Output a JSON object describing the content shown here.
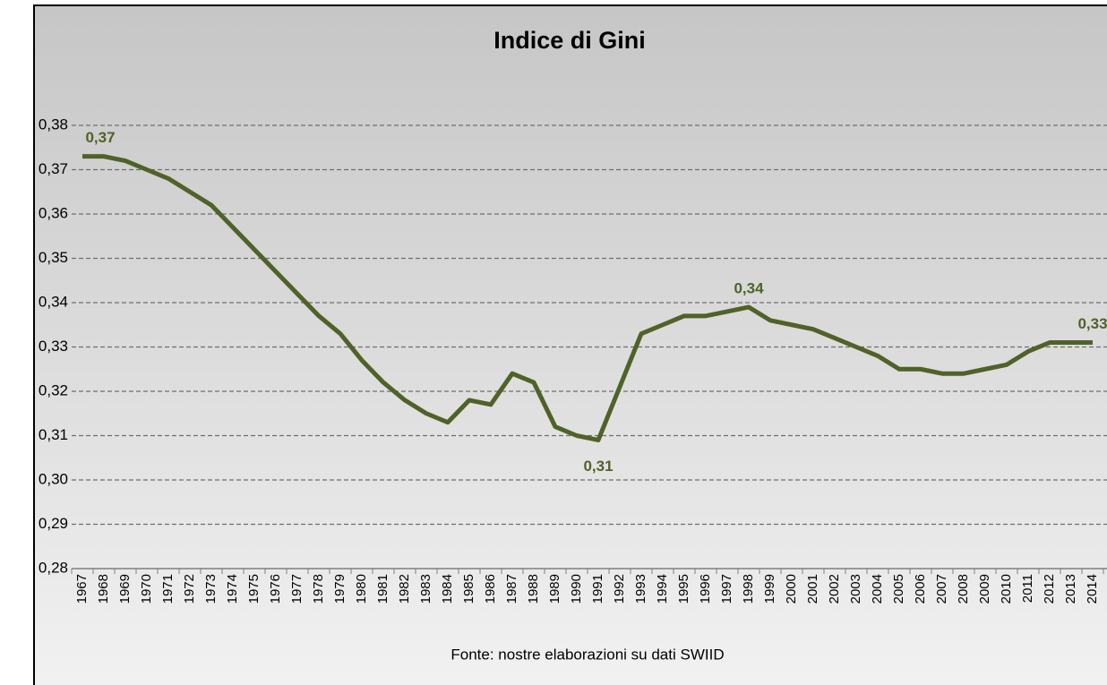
{
  "chart_data": {
    "type": "line",
    "title": "Indice di Gini",
    "note": "Fonte:  nostre elaborazioni su dati SWIID",
    "categories": [
      "1967",
      "1968",
      "1969",
      "1970",
      "1971",
      "1972",
      "1973",
      "1974",
      "1975",
      "1976",
      "1977",
      "1978",
      "1979",
      "1980",
      "1981",
      "1982",
      "1983",
      "1984",
      "1985",
      "1986",
      "1987",
      "1988",
      "1989",
      "1990",
      "1991",
      "1992",
      "1993",
      "1994",
      "1995",
      "1996",
      "1997",
      "1998",
      "1999",
      "2000",
      "2001",
      "2002",
      "2003",
      "2004",
      "2005",
      "2006",
      "2007",
      "2008",
      "2009",
      "2010",
      "2011",
      "2012",
      "2013",
      "2014"
    ],
    "series": [
      {
        "name": "Indice di Gini",
        "color": "#4f6228",
        "values": [
          0.373,
          0.373,
          0.372,
          0.37,
          0.368,
          0.365,
          0.362,
          0.357,
          0.352,
          0.347,
          0.342,
          0.337,
          0.333,
          0.327,
          0.322,
          0.318,
          0.315,
          0.313,
          0.318,
          0.317,
          0.324,
          0.322,
          0.312,
          0.31,
          0.309,
          0.321,
          0.333,
          0.335,
          0.337,
          0.337,
          0.338,
          0.339,
          0.336,
          0.335,
          0.334,
          0.332,
          0.33,
          0.328,
          0.325,
          0.325,
          0.324,
          0.324,
          0.325,
          0.326,
          0.329,
          0.331,
          0.331,
          0.331
        ],
        "value_labels": [
          "0,37",
          null,
          null,
          null,
          null,
          null,
          null,
          null,
          null,
          null,
          null,
          null,
          null,
          null,
          null,
          null,
          null,
          null,
          null,
          null,
          null,
          null,
          null,
          null,
          "0,31",
          null,
          null,
          null,
          null,
          null,
          null,
          "0,34",
          null,
          null,
          null,
          null,
          null,
          null,
          null,
          null,
          null,
          null,
          null,
          null,
          null,
          null,
          null,
          "0,33"
        ]
      }
    ],
    "ylim": [
      0.28,
      0.38
    ],
    "yticks": [
      {
        "value": 0.28,
        "label": "0,28"
      },
      {
        "value": 0.29,
        "label": "0,29"
      },
      {
        "value": 0.3,
        "label": "0,30"
      },
      {
        "value": 0.31,
        "label": "0,31"
      },
      {
        "value": 0.32,
        "label": "0,32"
      },
      {
        "value": 0.33,
        "label": "0,33"
      },
      {
        "value": 0.34,
        "label": "0,34"
      },
      {
        "value": 0.35,
        "label": "0,35"
      },
      {
        "value": 0.36,
        "label": "0,36"
      },
      {
        "value": 0.37,
        "label": "0,37"
      },
      {
        "value": 0.38,
        "label": "0,38"
      }
    ],
    "grid": true
  }
}
